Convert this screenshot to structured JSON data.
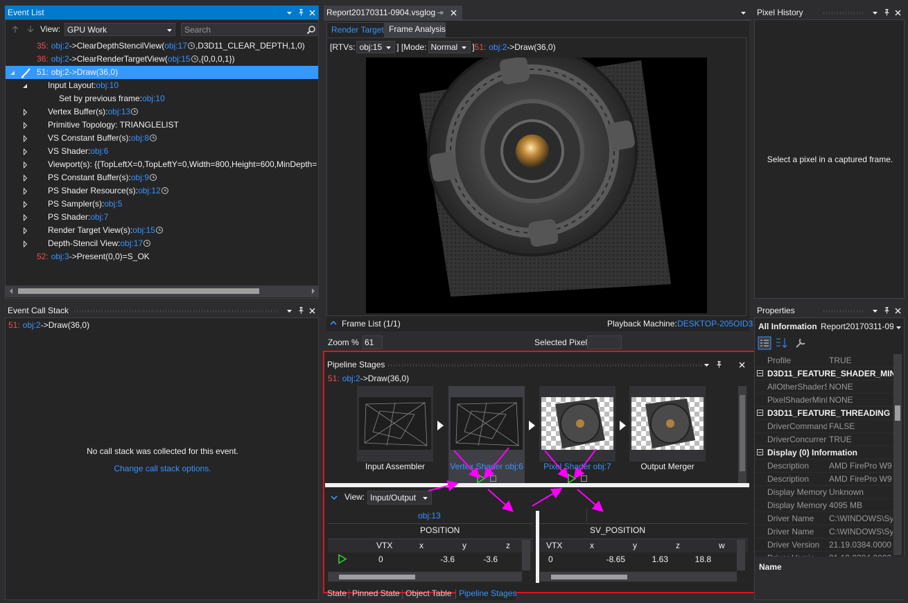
{
  "event_list": {
    "title": "Event List",
    "view_label": "View:",
    "view_value": "GPU Work",
    "search_placeholder": "Search",
    "rows": [
      {
        "level": 0,
        "segments": [
          {
            "text": "35:",
            "style": "id"
          },
          {
            "text": "obj:2",
            "style": "link"
          },
          {
            "text": "->ClearDepthStencilView(",
            "style": "text"
          },
          {
            "text": "obj:17",
            "style": "link",
            "icon": "history"
          },
          {
            "text": ",D3D11_CLEAR_DEPTH,1,0)",
            "style": "text"
          }
        ]
      },
      {
        "level": 0,
        "segments": [
          {
            "text": "36:",
            "style": "id"
          },
          {
            "text": "obj:2",
            "style": "link"
          },
          {
            "text": "->ClearRenderTargetView(",
            "style": "text"
          },
          {
            "text": "obj:15",
            "style": "link",
            "icon": "history"
          },
          {
            "text": ",{0,0,0,1})",
            "style": "text"
          }
        ]
      },
      {
        "level": 0,
        "expander": "expanded",
        "selected": true,
        "segments": [
          {
            "text": "51:",
            "style": "id"
          },
          {
            "text": "obj:2",
            "style": "link"
          },
          {
            "text": "->Draw(36,0)",
            "style": "text"
          }
        ]
      },
      {
        "level": 1,
        "expander": "expanded",
        "segments": [
          {
            "text": "Input Layout:",
            "style": "text"
          },
          {
            "text": "obj:10",
            "style": "link"
          }
        ]
      },
      {
        "level": 2,
        "segments": [
          {
            "text": "Set by previous frame:",
            "style": "text"
          },
          {
            "text": "obj:10",
            "style": "link"
          }
        ]
      },
      {
        "level": 1,
        "expander": "collapsed",
        "segments": [
          {
            "text": "Vertex Buffer(s):",
            "style": "text"
          },
          {
            "text": "obj:13",
            "style": "link",
            "icon": "history"
          }
        ]
      },
      {
        "level": 1,
        "expander": "collapsed",
        "segments": [
          {
            "text": "Primitive Topology: TRIANGLELIST",
            "style": "text"
          }
        ]
      },
      {
        "level": 1,
        "expander": "collapsed",
        "segments": [
          {
            "text": "VS Constant Buffer(s):",
            "style": "text"
          },
          {
            "text": "obj:8",
            "style": "link",
            "icon": "history"
          }
        ]
      },
      {
        "level": 1,
        "expander": "collapsed",
        "segments": [
          {
            "text": "VS Shader:",
            "style": "text"
          },
          {
            "text": "obj:6",
            "style": "link"
          }
        ]
      },
      {
        "level": 1,
        "expander": "collapsed",
        "segments": [
          {
            "text": "Viewport(s): {{TopLeftX=0,TopLeftY=0,Width=800,Height=600,MinDepth=",
            "style": "text"
          }
        ]
      },
      {
        "level": 1,
        "expander": "collapsed",
        "segments": [
          {
            "text": "PS Constant Buffer(s):",
            "style": "text"
          },
          {
            "text": "obj:9",
            "style": "link",
            "icon": "history"
          }
        ]
      },
      {
        "level": 1,
        "expander": "collapsed",
        "segments": [
          {
            "text": "PS Shader Resource(s):",
            "style": "text"
          },
          {
            "text": "obj:12",
            "style": "link",
            "icon": "history"
          }
        ]
      },
      {
        "level": 1,
        "expander": "collapsed",
        "segments": [
          {
            "text": "PS Sampler(s):",
            "style": "text"
          },
          {
            "text": "obj:5",
            "style": "link"
          }
        ]
      },
      {
        "level": 1,
        "expander": "collapsed",
        "segments": [
          {
            "text": "PS Shader:",
            "style": "text"
          },
          {
            "text": "obj:7",
            "style": "link"
          }
        ]
      },
      {
        "level": 1,
        "expander": "collapsed",
        "segments": [
          {
            "text": "Render Target View(s):",
            "style": "text"
          },
          {
            "text": "obj:15",
            "style": "link",
            "icon": "history"
          }
        ]
      },
      {
        "level": 1,
        "expander": "collapsed",
        "segments": [
          {
            "text": "Depth-Stencil View:",
            "style": "text"
          },
          {
            "text": "obj:17",
            "style": "link",
            "icon": "history"
          }
        ]
      },
      {
        "level": 0,
        "segments": [
          {
            "text": "52:",
            "style": "id"
          },
          {
            "text": "obj:3",
            "style": "link"
          },
          {
            "text": "->Present(0,0)=S_OK",
            "style": "text"
          }
        ]
      }
    ]
  },
  "call_stack": {
    "title": "Event Call Stack",
    "frame": [
      {
        "text": "51:",
        "style": "id"
      },
      {
        "text": "obj:2",
        "style": "link"
      },
      {
        "text": "->Draw(36,0)",
        "style": "text"
      }
    ],
    "message": "No call stack was collected for this event.",
    "link": "Change call stack options."
  },
  "document": {
    "tab": "Report20170311-0904.vsglog",
    "tabs": [
      {
        "label": "Render Target",
        "active": true
      },
      {
        "label": "Frame Analysis"
      }
    ],
    "toolbar": [
      {
        "text": "[RTVs:",
        "style": "text"
      },
      {
        "text": "obj:15",
        "style": "combo"
      },
      {
        "text": "] [Mode:",
        "style": "text"
      },
      {
        "text": "Normal",
        "style": "combo"
      },
      {
        "text": "]",
        "style": "text"
      },
      {
        "text": "51:",
        "style": "id"
      },
      {
        "text": "obj:2",
        "style": "link"
      },
      {
        "text": "->Draw(36,0)",
        "style": "text"
      }
    ],
    "frame_list": "Frame List (1/1)",
    "playback_label": "Playback Machine:",
    "playback_machine": "DESKTOP-205OID3",
    "zoom_label": "Zoom %",
    "zoom_value": "61",
    "selected_pixel_label": "Selected Pixel"
  },
  "pipeline": {
    "title": "Pipeline Stages",
    "event": [
      {
        "text": "51:",
        "style": "id"
      },
      {
        "text": "obj:2",
        "style": "link"
      },
      {
        "text": "->Draw(36,0)",
        "style": "text"
      }
    ],
    "stages": [
      {
        "label": "Input Assembler",
        "thumb": "wire"
      },
      {
        "label": "Vertex Shader obj:6",
        "thumb": "wire",
        "link": true,
        "debug": true,
        "selected": true
      },
      {
        "label": "Pixel Shader obj:7",
        "thumb": "texture",
        "link": true,
        "debug": true
      },
      {
        "label": "Output Merger",
        "thumb": "texture"
      }
    ],
    "view_label": "View:",
    "view_value": "Input/Output",
    "input_table": {
      "object": "obj:13",
      "semantic": "POSITION",
      "columns": [
        "VTX",
        "x",
        "y",
        "z"
      ],
      "rows": [
        [
          "0",
          "-3.6",
          "-3.6"
        ]
      ]
    },
    "output_table": {
      "semantic": "SV_POSITION",
      "columns": [
        "VTX",
        "x",
        "y",
        "z",
        "w"
      ],
      "rows": [
        [
          "0",
          "-8.65",
          "1.63",
          "18.8"
        ]
      ]
    }
  },
  "bottom_tabs": [
    {
      "label": "State"
    },
    {
      "label": "Pinned State"
    },
    {
      "label": "Object Table"
    },
    {
      "label": "Pipeline Stages",
      "active": true
    }
  ],
  "pixel_history": {
    "title": "Pixel History",
    "message": "Select a pixel in a captured frame."
  },
  "properties": {
    "title": "Properties",
    "scope": "All Information",
    "target": "Report20170311-090",
    "rows": [
      {
        "name": "Profile",
        "value": "TRUE"
      },
      {
        "section": "D3D11_FEATURE_SHADER_MIN_"
      },
      {
        "name": "AllOtherShaderS",
        "value": "NONE"
      },
      {
        "name": "PixelShaderMinI",
        "value": "NONE"
      },
      {
        "section": "D3D11_FEATURE_THREADING"
      },
      {
        "name": "DriverCommand",
        "value": "FALSE"
      },
      {
        "name": "DriverConcurrer",
        "value": "TRUE"
      },
      {
        "section": "Display (0) Information"
      },
      {
        "name": "Description",
        "value": "AMD FirePro W9"
      },
      {
        "name": "Description",
        "value": "AMD FirePro W9"
      },
      {
        "name": "Display Memory",
        "value": "Unknown"
      },
      {
        "name": "Display Memory",
        "value": "4095 MB"
      },
      {
        "name": "Driver Name",
        "value": "C:\\WINDOWS\\Sy"
      },
      {
        "name": "Driver Name",
        "value": "C:\\WINDOWS\\Sy"
      },
      {
        "name": "Driver Version",
        "value": "21.19.0384.0000"
      },
      {
        "name": "Driver Versio",
        "value": "21.19.0384.0000"
      }
    ],
    "footer": "Name"
  }
}
